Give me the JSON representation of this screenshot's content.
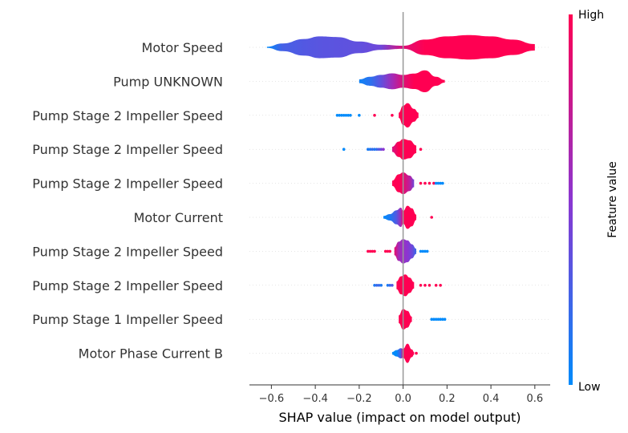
{
  "chart_data": {
    "type": "violin",
    "xlabel": "SHAP value (impact on model output)",
    "xlim": [
      -0.7,
      0.67
    ],
    "xticks": [
      -0.6,
      -0.4,
      -0.2,
      0.0,
      0.2,
      0.4,
      0.6
    ],
    "xtick_labels": [
      "−0.6",
      "−0.4",
      "−0.2",
      "0.0",
      "0.2",
      "0.4",
      "0.6"
    ],
    "colorbar": {
      "label": "Feature value",
      "high_label": "High",
      "low_label": "Low",
      "low_color": "#008bfb",
      "mid_color": "#8b36d1",
      "high_color": "#ff0052"
    },
    "features": [
      {
        "name": "Motor Speed",
        "profile": [
          [
            -0.62,
            0.05,
            0.0
          ],
          [
            -0.55,
            0.3,
            0.25
          ],
          [
            -0.45,
            0.65,
            0.3
          ],
          [
            -0.38,
            0.85,
            0.32
          ],
          [
            -0.3,
            0.8,
            0.33
          ],
          [
            -0.2,
            0.45,
            0.35
          ],
          [
            -0.1,
            0.2,
            0.4
          ],
          [
            0.0,
            0.12,
            0.85
          ],
          [
            0.1,
            0.6,
            1.0
          ],
          [
            0.2,
            0.85,
            1.0
          ],
          [
            0.3,
            0.95,
            1.0
          ],
          [
            0.4,
            0.85,
            1.0
          ],
          [
            0.5,
            0.6,
            1.0
          ],
          [
            0.6,
            0.25,
            1.0
          ]
        ],
        "outliers": []
      },
      {
        "name": "Pump UNKNOWN",
        "profile": [
          [
            -0.2,
            0.15,
            0.05
          ],
          [
            -0.15,
            0.35,
            0.15
          ],
          [
            -0.1,
            0.5,
            0.35
          ],
          [
            -0.05,
            0.62,
            0.6
          ],
          [
            0.0,
            0.5,
            0.85
          ],
          [
            0.05,
            0.6,
            1.0
          ],
          [
            0.1,
            0.85,
            1.0
          ],
          [
            0.15,
            0.35,
            1.0
          ],
          [
            0.19,
            0.1,
            1.0
          ]
        ],
        "outliers": []
      },
      {
        "name": "Pump Stage 2 Impeller Speed",
        "profile": [
          [
            -0.02,
            0.2,
            1.0
          ],
          [
            0.0,
            0.75,
            1.0
          ],
          [
            0.02,
            0.95,
            1.0
          ],
          [
            0.05,
            0.5,
            1.0
          ],
          [
            0.07,
            0.2,
            1.0
          ]
        ],
        "outliers": [
          [
            -0.3,
            0.0
          ],
          [
            -0.29,
            0.0
          ],
          [
            -0.28,
            0.0
          ],
          [
            -0.27,
            0.0
          ],
          [
            -0.26,
            0.0
          ],
          [
            -0.25,
            0.0
          ],
          [
            -0.24,
            0.0
          ],
          [
            -0.2,
            0.0
          ],
          [
            -0.13,
            1.0
          ],
          [
            -0.05,
            1.0
          ]
        ]
      },
      {
        "name": "Pump Stage 2 Impeller Speed",
        "profile": [
          [
            -0.05,
            0.2,
            0.8
          ],
          [
            -0.02,
            0.6,
            1.0
          ],
          [
            0.0,
            0.8,
            1.0
          ],
          [
            0.03,
            0.7,
            1.0
          ],
          [
            0.06,
            0.3,
            1.0
          ]
        ],
        "outliers": [
          [
            -0.27,
            0.0
          ],
          [
            -0.16,
            0.1
          ],
          [
            -0.15,
            0.1
          ],
          [
            -0.14,
            0.2
          ],
          [
            -0.13,
            0.1
          ],
          [
            -0.12,
            0.2
          ],
          [
            -0.11,
            0.3
          ],
          [
            -0.1,
            0.4
          ],
          [
            -0.09,
            0.5
          ],
          [
            0.08,
            1.0
          ]
        ]
      },
      {
        "name": "Pump Stage 2 Impeller Speed",
        "profile": [
          [
            -0.05,
            0.2,
            1.0
          ],
          [
            -0.02,
            0.7,
            1.0
          ],
          [
            0.0,
            0.85,
            0.9
          ],
          [
            0.03,
            0.6,
            0.7
          ],
          [
            0.05,
            0.3,
            0.4
          ]
        ],
        "outliers": [
          [
            0.08,
            1.0
          ],
          [
            0.1,
            1.0
          ],
          [
            0.12,
            1.0
          ],
          [
            0.14,
            1.0
          ],
          [
            0.15,
            0.0
          ],
          [
            0.16,
            0.0
          ],
          [
            0.17,
            0.0
          ],
          [
            0.18,
            0.0
          ]
        ]
      },
      {
        "name": "Motor Current",
        "profile": [
          [
            -0.09,
            0.1,
            0.0
          ],
          [
            -0.06,
            0.25,
            0.1
          ],
          [
            -0.03,
            0.55,
            0.3
          ],
          [
            -0.01,
            0.75,
            0.6
          ],
          [
            0.0,
            0.5,
            1.0
          ],
          [
            0.02,
            0.9,
            1.0
          ],
          [
            0.04,
            0.7,
            1.0
          ],
          [
            0.06,
            0.2,
            1.0
          ]
        ],
        "outliers": [
          [
            0.13,
            1.0
          ]
        ]
      },
      {
        "name": "Pump Stage 2 Impeller Speed",
        "profile": [
          [
            -0.04,
            0.3,
            0.9
          ],
          [
            -0.02,
            0.75,
            0.6
          ],
          [
            0.0,
            0.95,
            0.55
          ],
          [
            0.02,
            0.85,
            0.5
          ],
          [
            0.04,
            0.55,
            0.4
          ],
          [
            0.06,
            0.2,
            0.2
          ]
        ],
        "outliers": [
          [
            -0.16,
            1.0
          ],
          [
            -0.15,
            1.0
          ],
          [
            -0.14,
            1.0
          ],
          [
            -0.13,
            1.0
          ],
          [
            -0.08,
            1.0
          ],
          [
            -0.07,
            1.0
          ],
          [
            -0.06,
            1.0
          ],
          [
            0.08,
            0.0
          ],
          [
            0.09,
            0.0
          ],
          [
            0.1,
            0.0
          ],
          [
            0.11,
            0.0
          ]
        ]
      },
      {
        "name": "Pump Stage 2 Impeller Speed",
        "profile": [
          [
            -0.03,
            0.3,
            1.0
          ],
          [
            -0.01,
            0.7,
            1.0
          ],
          [
            0.01,
            0.85,
            1.0
          ],
          [
            0.03,
            0.6,
            1.0
          ],
          [
            0.05,
            0.25,
            1.0
          ]
        ],
        "outliers": [
          [
            -0.13,
            0.1
          ],
          [
            -0.12,
            0.2
          ],
          [
            -0.11,
            0.2
          ],
          [
            -0.1,
            0.1
          ],
          [
            -0.07,
            0.1
          ],
          [
            -0.06,
            0.2
          ],
          [
            -0.05,
            0.3
          ],
          [
            0.08,
            1.0
          ],
          [
            0.1,
            1.0
          ],
          [
            0.12,
            1.0
          ],
          [
            0.15,
            1.0
          ],
          [
            0.17,
            1.0
          ]
        ]
      },
      {
        "name": "Pump Stage 1 Impeller Speed",
        "profile": [
          [
            -0.02,
            0.3,
            1.0
          ],
          [
            0.0,
            0.8,
            1.0
          ],
          [
            0.02,
            0.65,
            1.0
          ],
          [
            0.04,
            0.2,
            1.0
          ]
        ],
        "outliers": [
          [
            0.13,
            0.0
          ],
          [
            0.14,
            0.0
          ],
          [
            0.15,
            0.0
          ],
          [
            0.16,
            0.0
          ],
          [
            0.17,
            0.0
          ],
          [
            0.18,
            0.0
          ],
          [
            0.19,
            0.0
          ]
        ]
      },
      {
        "name": "Motor Phase Current B",
        "profile": [
          [
            -0.05,
            0.1,
            0.0
          ],
          [
            -0.03,
            0.25,
            0.0
          ],
          [
            -0.01,
            0.4,
            0.3
          ],
          [
            0.0,
            0.35,
            1.0
          ],
          [
            0.02,
            0.75,
            1.0
          ],
          [
            0.04,
            0.3,
            1.0
          ],
          [
            0.05,
            0.1,
            1.0
          ]
        ],
        "outliers": [
          [
            0.06,
            1.0
          ]
        ]
      }
    ]
  }
}
